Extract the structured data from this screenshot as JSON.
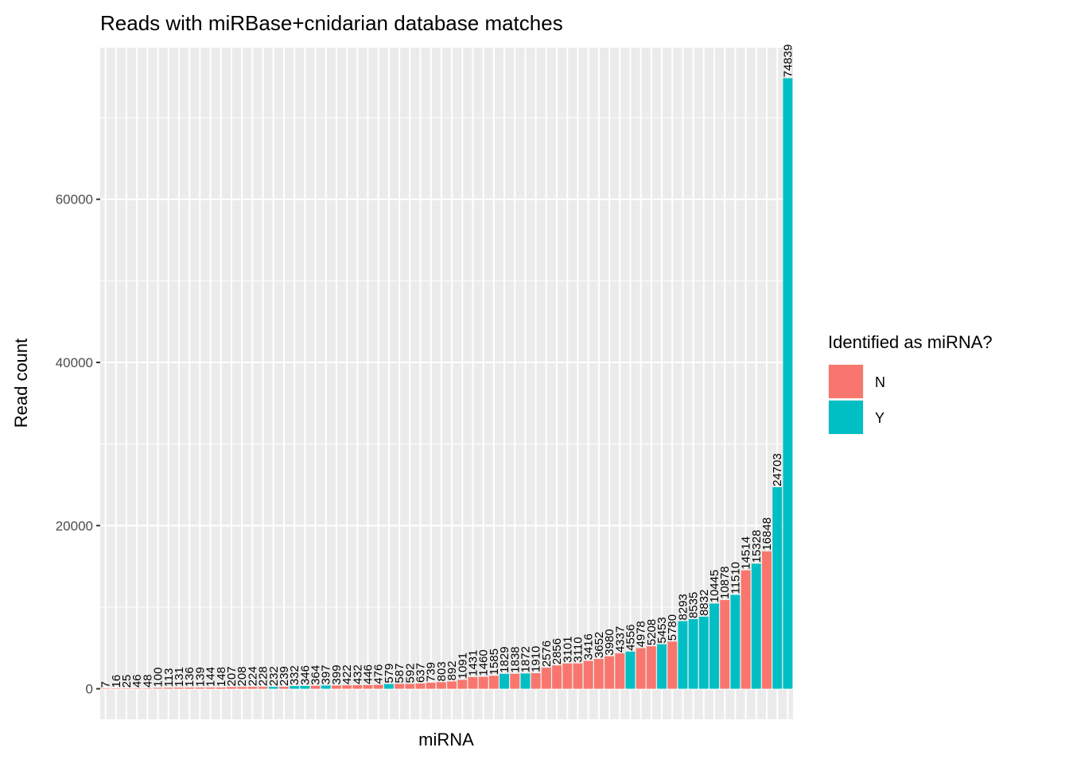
{
  "chart_data": {
    "type": "bar",
    "title": "Reads with miRBase+cnidarian database matches",
    "xlabel": "miRNA",
    "ylabel": "Read count",
    "ylim": [
      -3742,
      78581
    ],
    "yticks": [
      0,
      20000,
      40000,
      60000
    ],
    "ytick_labels": [
      "0",
      "20000",
      "40000",
      "60000"
    ],
    "grid": true,
    "legend": {
      "title": "Identified as miRNA?",
      "placement": "right",
      "entries": [
        {
          "label": "N",
          "color": "#F8766D"
        },
        {
          "label": "Y",
          "color": "#00BFC4"
        }
      ]
    },
    "values": [
      7,
      16,
      25,
      46,
      48,
      100,
      113,
      131,
      136,
      139,
      144,
      148,
      207,
      208,
      224,
      228,
      232,
      239,
      332,
      346,
      364,
      397,
      399,
      422,
      432,
      446,
      476,
      579,
      587,
      592,
      637,
      739,
      803,
      892,
      1091,
      1431,
      1460,
      1585,
      1829,
      1838,
      1872,
      1910,
      2576,
      2856,
      3101,
      3110,
      3416,
      3652,
      3980,
      4337,
      4556,
      4978,
      5208,
      5453,
      5780,
      8293,
      8535,
      8832,
      10445,
      10878,
      11510,
      14514,
      15328,
      16848,
      24703,
      74839
    ],
    "identified": [
      "N",
      "N",
      "N",
      "N",
      "N",
      "N",
      "N",
      "N",
      "N",
      "N",
      "N",
      "N",
      "N",
      "N",
      "N",
      "N",
      "Y",
      "N",
      "Y",
      "Y",
      "N",
      "Y",
      "N",
      "N",
      "N",
      "N",
      "N",
      "Y",
      "N",
      "N",
      "N",
      "N",
      "N",
      "N",
      "N",
      "N",
      "N",
      "N",
      "Y",
      "N",
      "Y",
      "N",
      "N",
      "N",
      "N",
      "N",
      "N",
      "N",
      "N",
      "N",
      "Y",
      "N",
      "N",
      "Y",
      "N",
      "Y",
      "Y",
      "Y",
      "Y",
      "N",
      "Y",
      "N",
      "Y",
      "N",
      "Y",
      "Y"
    ]
  }
}
